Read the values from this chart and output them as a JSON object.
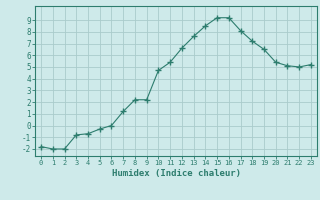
{
  "x": [
    0,
    1,
    2,
    3,
    4,
    5,
    6,
    7,
    8,
    9,
    10,
    11,
    12,
    13,
    14,
    15,
    16,
    17,
    18,
    19,
    20,
    21,
    22,
    23
  ],
  "y": [
    -1.8,
    -2.0,
    -2.0,
    -0.8,
    -0.7,
    -0.3,
    0.0,
    1.2,
    2.2,
    2.2,
    4.7,
    5.4,
    6.6,
    7.6,
    8.5,
    9.2,
    9.2,
    8.1,
    7.2,
    6.5,
    5.4,
    5.1,
    5.0,
    5.2
  ],
  "xlabel": "Humidex (Indice chaleur)",
  "xlim": [
    -0.5,
    23.5
  ],
  "ylim": [
    -2.6,
    10.2
  ],
  "yticks": [
    -2,
    -1,
    0,
    1,
    2,
    3,
    4,
    5,
    6,
    7,
    8,
    9
  ],
  "xtick_labels": [
    "0",
    "1",
    "2",
    "3",
    "4",
    "5",
    "6",
    "7",
    "8",
    "9",
    "10",
    "11",
    "12",
    "13",
    "14",
    "15",
    "16",
    "17",
    "18",
    "19",
    "20",
    "21",
    "22",
    "23"
  ],
  "line_color": "#2d7d6e",
  "marker": "+",
  "bg_color": "#ceeaea",
  "grid_color": "#aacccc",
  "axis_color": "#2d7d6e",
  "tick_color": "#2d7d6e",
  "label_color": "#2d7d6e"
}
